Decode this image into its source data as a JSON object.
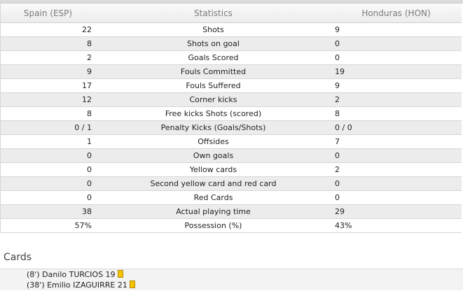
{
  "header": {
    "home_team": "Spain (ESP)",
    "stat_label": "Statistics",
    "away_team": "Honduras (HON)"
  },
  "stats": [
    {
      "home": "22",
      "label": "Shots",
      "away": "9"
    },
    {
      "home": "8",
      "label": "Shots on goal",
      "away": "0"
    },
    {
      "home": "2",
      "label": "Goals Scored",
      "away": "0"
    },
    {
      "home": "9",
      "label": "Fouls Committed",
      "away": "19"
    },
    {
      "home": "17",
      "label": "Fouls Suffered",
      "away": "9"
    },
    {
      "home": "12",
      "label": "Corner kicks",
      "away": "2"
    },
    {
      "home": "8",
      "label": "Free kicks Shots (scored)",
      "away": "8"
    },
    {
      "home": "0 / 1",
      "label": "Penalty Kicks (Goals/Shots)",
      "away": "0 / 0"
    },
    {
      "home": "1",
      "label": "Offsides",
      "away": "7"
    },
    {
      "home": "0",
      "label": "Own goals",
      "away": "0"
    },
    {
      "home": "0",
      "label": "Yellow cards",
      "away": "2"
    },
    {
      "home": "0",
      "label": "Second yellow card and red card",
      "away": "0"
    },
    {
      "home": "0",
      "label": "Red Cards",
      "away": "0"
    },
    {
      "home": "38",
      "label": "Actual playing time",
      "away": "29"
    },
    {
      "home": "57%",
      "label": "Possession (%)",
      "away": "43%"
    }
  ],
  "cards": {
    "heading": "Cards",
    "items": [
      {
        "text": "(8') Danilo TURCIOS 19",
        "card_icon": "yellow-card-icon",
        "card_color": "#f5c400"
      },
      {
        "text": "(38') Emilio IZAGUIRRE 21",
        "card_icon": "yellow-card-icon",
        "card_color": "#f5c400"
      }
    ]
  }
}
